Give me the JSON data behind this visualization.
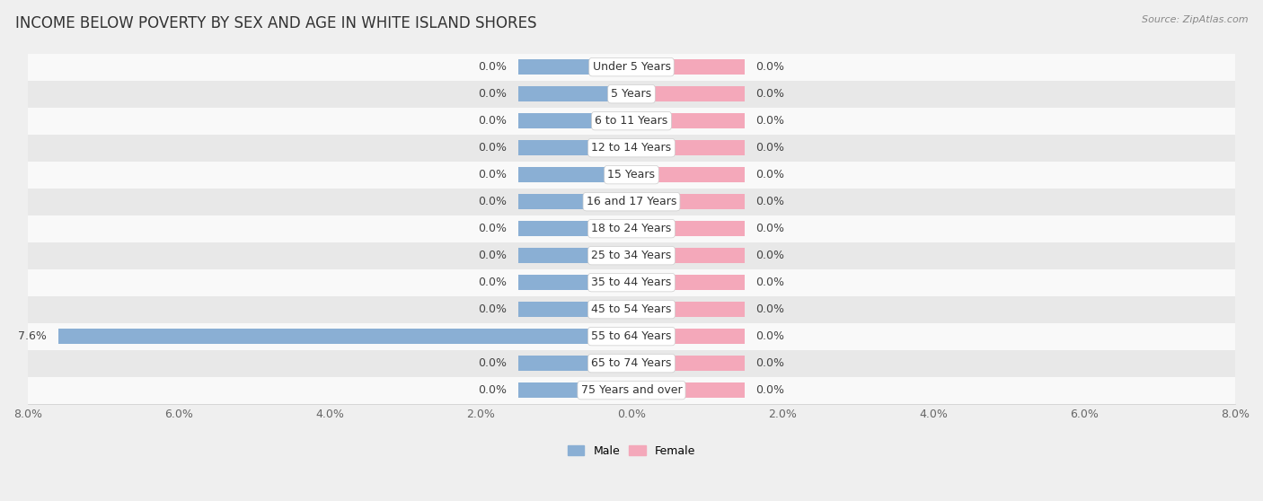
{
  "title": "INCOME BELOW POVERTY BY SEX AND AGE IN WHITE ISLAND SHORES",
  "source": "Source: ZipAtlas.com",
  "categories": [
    "Under 5 Years",
    "5 Years",
    "6 to 11 Years",
    "12 to 14 Years",
    "15 Years",
    "16 and 17 Years",
    "18 to 24 Years",
    "25 to 34 Years",
    "35 to 44 Years",
    "45 to 54 Years",
    "55 to 64 Years",
    "65 to 74 Years",
    "75 Years and over"
  ],
  "male_values": [
    0.0,
    0.0,
    0.0,
    0.0,
    0.0,
    0.0,
    0.0,
    0.0,
    0.0,
    0.0,
    7.6,
    0.0,
    0.0
  ],
  "female_values": [
    0.0,
    0.0,
    0.0,
    0.0,
    0.0,
    0.0,
    0.0,
    0.0,
    0.0,
    0.0,
    0.0,
    0.0,
    0.0
  ],
  "male_color": "#8aafd4",
  "female_color": "#f4a8ba",
  "male_label": "Male",
  "female_label": "Female",
  "xlim": 8.0,
  "stub_size": 1.5,
  "bar_height": 0.55,
  "background_color": "#efefef",
  "row_color_light": "#f9f9f9",
  "row_color_dark": "#e8e8e8",
  "title_fontsize": 12,
  "source_fontsize": 8,
  "axis_fontsize": 9,
  "label_fontsize": 9,
  "category_fontsize": 9
}
